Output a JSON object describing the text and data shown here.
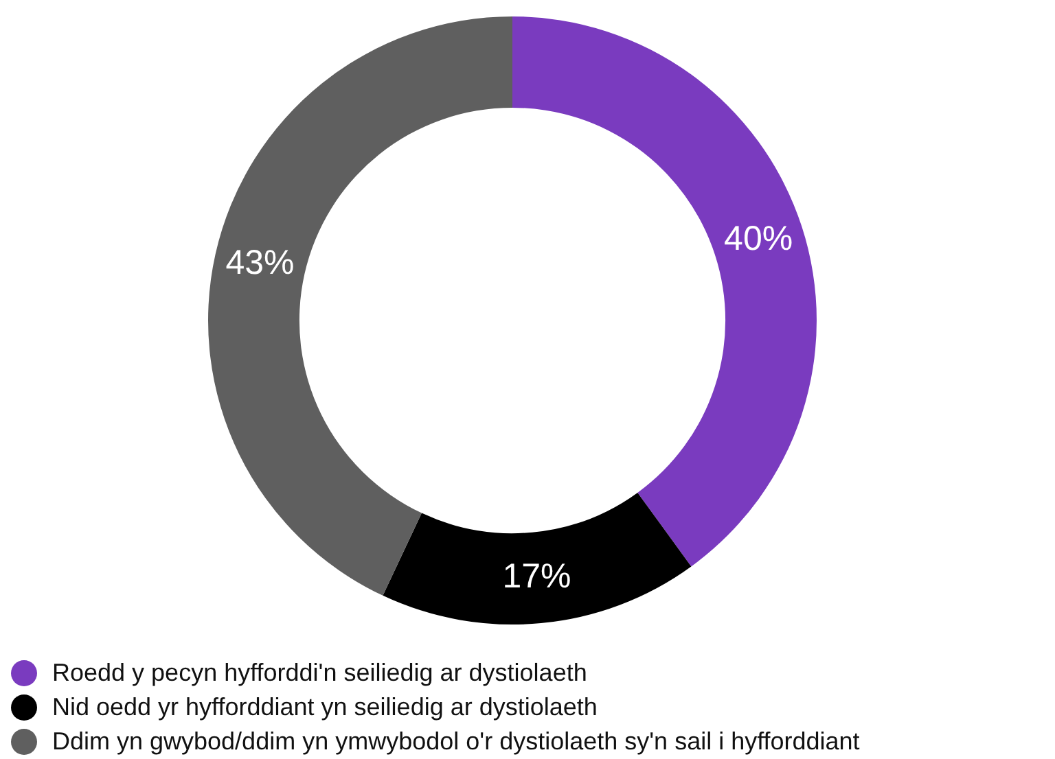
{
  "chart_data": {
    "type": "donut",
    "categories": [
      "Roedd y pecyn hyfforddi'n seiliedig ar dystiolaeth",
      "Nid oedd yr hyfforddiant yn seiliedig ar dystiolaeth",
      "Ddim yn gwybod/ddim yn ymwybodol o'r dystiolaeth sy'n sail i hyfforddiant"
    ],
    "values": [
      40,
      17,
      43
    ],
    "colors": [
      "#7a3bbf",
      "#000000",
      "#5f5f5f"
    ],
    "value_labels": [
      "40%",
      "17%",
      "43%"
    ],
    "legend": "bottom left"
  }
}
